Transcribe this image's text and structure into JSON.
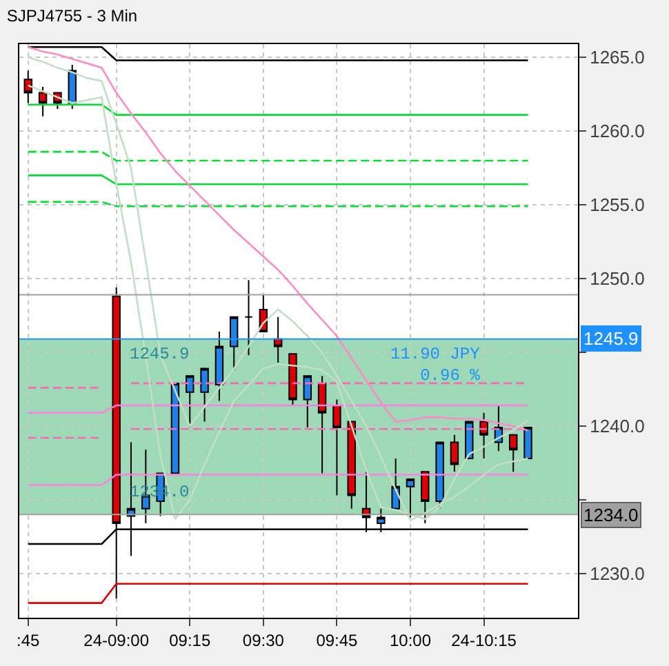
{
  "chart_data": {
    "type": "candlestick",
    "title": "SJPJ4755 - 3 Min",
    "categories": [
      ":45",
      null,
      null,
      null,
      null,
      null,
      "24-09:00",
      null,
      null,
      null,
      null,
      "09:15",
      null,
      null,
      null,
      null,
      "09:30",
      null,
      null,
      null,
      null,
      "09:45",
      null,
      null,
      null,
      null,
      "10:00",
      null,
      null,
      null,
      null,
      "24-10:15",
      null,
      null,
      null
    ],
    "ohlc": [
      [
        1263.5,
        1264.1,
        1261.9,
        1262.6
      ],
      [
        1262.6,
        1263.0,
        1261.0,
        1261.9
      ],
      [
        1262.6,
        1262.6,
        1261.5,
        1261.9
      ],
      [
        1261.9,
        1264.5,
        1261.5,
        1264.1
      ],
      null,
      null,
      [
        1248.8,
        1249.4,
        1228.3,
        1233.4
      ],
      [
        1233.9,
        1238.9,
        1231.2,
        1234.4
      ],
      [
        1234.4,
        1238.4,
        1233.4,
        1235.3
      ],
      [
        1234.9,
        1236.8,
        1233.9,
        1236.8
      ],
      [
        1236.8,
        1242.9,
        1236.8,
        1242.9
      ],
      [
        1242.3,
        1243.4,
        1239.9,
        1243.4
      ],
      [
        1242.3,
        1243.9,
        1240.3,
        1243.9
      ],
      [
        1242.8,
        1246.4,
        1241.7,
        1245.4
      ],
      [
        1245.4,
        1247.4,
        1243.8,
        1247.4
      ],
      [
        1247.4,
        1249.9,
        1244.8,
        1247.4
      ],
      [
        1247.9,
        1248.9,
        1246.4,
        1246.4
      ],
      [
        1245.9,
        1247.4,
        1244.3,
        1245.4
      ],
      [
        1244.9,
        1244.9,
        1241.4,
        1241.8
      ],
      [
        1241.8,
        1243.4,
        1239.9,
        1243.4
      ],
      [
        1242.9,
        1243.4,
        1236.8,
        1240.9
      ],
      [
        1241.4,
        1241.8,
        1235.3,
        1239.9
      ],
      [
        1240.3,
        1240.3,
        1234.4,
        1235.3
      ],
      [
        1234.4,
        1236.9,
        1232.8,
        1233.8
      ],
      [
        1233.4,
        1234.4,
        1232.8,
        1233.8
      ],
      [
        1234.4,
        1237.8,
        1234.4,
        1235.9
      ],
      [
        1235.9,
        1236.4,
        1233.8,
        1236.4
      ],
      [
        1236.9,
        1236.9,
        1233.4,
        1234.9
      ],
      [
        1234.9,
        1238.9,
        1234.4,
        1238.9
      ],
      [
        1238.9,
        1239.4,
        1236.9,
        1237.4
      ],
      [
        1237.8,
        1240.3,
        1237.8,
        1240.3
      ],
      [
        1240.3,
        1240.9,
        1237.8,
        1239.4
      ],
      [
        1238.9,
        1241.4,
        1238.3,
        1239.9
      ],
      [
        1239.4,
        1239.4,
        1236.9,
        1238.4
      ],
      [
        1237.8,
        1239.9,
        1237.8,
        1239.9
      ]
    ],
    "colors": [
      "#e00000",
      "#e00000",
      "#e00000",
      "#1e82e6",
      null,
      null,
      "#e00000",
      "#1e82e6",
      "#1e82e6",
      "#1e82e6",
      "#1e82e6",
      "#1e82e6",
      "#1e82e6",
      "#1e82e6",
      "#1e82e6",
      "#000000",
      "#e00000",
      "#e00000",
      "#e00000",
      "#1e82e6",
      "#e00000",
      "#e00000",
      "#e00000",
      "#e00000",
      "#1e82e6",
      "#1e82e6",
      "#1e82e6",
      "#e00000",
      "#1e82e6",
      "#e00000",
      "#1e82e6",
      "#e00000",
      "#1e82e6",
      "#e00000",
      "#1e82e6"
    ],
    "series": [
      {
        "type": "line",
        "color": "#000000",
        "line_style": "solid",
        "values": [
          1265.7,
          1265.7,
          1265.7,
          1265.7,
          1265.7,
          1265.7,
          1264.8,
          1264.8,
          1264.8,
          1264.8,
          1264.8,
          1264.8,
          1264.8,
          1264.8,
          1264.8,
          1264.8,
          1264.8,
          1264.8,
          1264.8,
          1264.8,
          1264.8,
          1264.8,
          1264.8,
          1264.8,
          1264.8,
          1264.8,
          1264.8,
          1264.8,
          1264.8,
          1264.8,
          1264.8,
          1264.8,
          1264.8,
          1264.8,
          1264.8
        ]
      },
      {
        "type": "line",
        "color": "#00dd33",
        "line_style": "solid",
        "values": [
          1261.8,
          1261.8,
          1261.8,
          1261.8,
          1261.8,
          1261.8,
          1261.1,
          1261.1,
          1261.1,
          1261.1,
          1261.1,
          1261.1,
          1261.1,
          1261.1,
          1261.1,
          1261.1,
          1261.1,
          1261.1,
          1261.1,
          1261.1,
          1261.1,
          1261.1,
          1261.1,
          1261.1,
          1261.1,
          1261.1,
          1261.1,
          1261.1,
          1261.1,
          1261.1,
          1261.1,
          1261.1,
          1261.1,
          1261.1,
          1261.1
        ]
      },
      {
        "type": "line",
        "color": "#00dd33",
        "line_style": "dashed",
        "values": [
          1258.6,
          1258.6,
          1258.6,
          1258.6,
          1258.6,
          1258.6,
          1258.0,
          1258.0,
          1258.0,
          1258.0,
          1258.0,
          1258.0,
          1258.0,
          1258.0,
          1258.0,
          1258.0,
          1258.0,
          1258.0,
          1258.0,
          1258.0,
          1258.0,
          1258.0,
          1258.0,
          1258.0,
          1258.0,
          1258.0,
          1258.0,
          1258.0,
          1258.0,
          1258.0,
          1258.0,
          1258.0,
          1258.0,
          1258.0,
          1258.0
        ]
      },
      {
        "type": "line",
        "color": "#00dd33",
        "line_style": "solid",
        "values": [
          1257.0,
          1257.0,
          1257.0,
          1257.0,
          1257.0,
          1257.0,
          1256.4,
          1256.4,
          1256.4,
          1256.4,
          1256.4,
          1256.4,
          1256.4,
          1256.4,
          1256.4,
          1256.4,
          1256.4,
          1256.4,
          1256.4,
          1256.4,
          1256.4,
          1256.4,
          1256.4,
          1256.4,
          1256.4,
          1256.4,
          1256.4,
          1256.4,
          1256.4,
          1256.4,
          1256.4,
          1256.4,
          1256.4,
          1256.4,
          1256.4
        ]
      },
      {
        "type": "line",
        "color": "#00dd33",
        "line_style": "dashed",
        "values": [
          1255.2,
          1255.2,
          1255.2,
          1255.2,
          1255.2,
          1255.2,
          1254.9,
          1254.9,
          1254.9,
          1254.9,
          1254.9,
          1254.9,
          1254.9,
          1254.9,
          1254.9,
          1254.9,
          1254.9,
          1254.9,
          1254.9,
          1254.9,
          1254.9,
          1254.9,
          1254.9,
          1254.9,
          1254.9,
          1254.9,
          1254.9,
          1254.9,
          1254.9,
          1254.9,
          1254.9,
          1254.9,
          1254.9,
          1254.9,
          1254.9
        ]
      },
      {
        "type": "line",
        "color": "#ff69b4",
        "line_style": "dashed",
        "values": [
          1242.6,
          1242.6,
          1242.6,
          1242.6,
          1242.6,
          1242.6,
          null,
          1242.9,
          1242.9,
          1242.9,
          1242.9,
          1242.9,
          1242.9,
          1242.9,
          1242.9,
          1242.9,
          1242.9,
          1242.9,
          1242.9,
          1242.9,
          1242.9,
          1242.9,
          1242.9,
          1242.9,
          1242.9,
          1242.9,
          1242.9,
          1242.9,
          1242.9,
          1242.9,
          1242.9,
          1242.9,
          1242.9,
          1242.9,
          1242.9
        ]
      },
      {
        "type": "line",
        "color": "#ff80e0",
        "line_style": "solid",
        "values": [
          1240.9,
          1240.9,
          1240.9,
          1240.9,
          1240.9,
          1240.9,
          1241.4,
          1241.4,
          1241.4,
          1241.4,
          1241.4,
          1241.4,
          1241.4,
          1241.4,
          1241.4,
          1241.4,
          1241.4,
          1241.4,
          1241.4,
          1241.4,
          1241.4,
          1241.4,
          1241.4,
          1241.4,
          1241.4,
          1241.4,
          1241.4,
          1241.4,
          1241.4,
          1241.4,
          1241.4,
          1241.4,
          1241.4,
          1241.4,
          1241.4
        ]
      },
      {
        "type": "line",
        "color": "#ff69b4",
        "line_style": "dashed",
        "values": [
          1239.2,
          1239.2,
          1239.2,
          1239.2,
          1239.2,
          1239.2,
          null,
          1239.8,
          1239.8,
          1239.8,
          1239.8,
          1239.8,
          1239.8,
          1239.8,
          1239.8,
          1239.8,
          1239.8,
          1239.8,
          1239.8,
          1239.8,
          1239.8,
          1239.8,
          1239.8,
          1239.8,
          1239.8,
          1239.8,
          1239.8,
          1239.8,
          1239.8,
          1239.8,
          1239.8,
          1239.8,
          1239.8,
          1239.8,
          1239.8
        ]
      },
      {
        "type": "line",
        "color": "#ff80e0",
        "line_style": "solid",
        "values": [
          1236.0,
          1236.0,
          1236.0,
          1236.0,
          1236.0,
          1236.0,
          1236.7,
          1236.7,
          1236.7,
          1236.7,
          1236.7,
          1236.7,
          1236.7,
          1236.7,
          1236.7,
          1236.7,
          1236.7,
          1236.7,
          1236.7,
          1236.7,
          1236.7,
          1236.7,
          1236.7,
          1236.7,
          1236.7,
          1236.7,
          1236.7,
          1236.7,
          1236.7,
          1236.7,
          1236.7,
          1236.7,
          1236.7,
          1236.7,
          1236.7
        ]
      },
      {
        "type": "line",
        "color": "#000000",
        "line_style": "solid",
        "values": [
          1232.0,
          1232.0,
          1232.0,
          1232.0,
          1232.0,
          1232.0,
          1233.0,
          1233.0,
          1233.0,
          1233.0,
          1233.0,
          1233.0,
          1233.0,
          1233.0,
          1233.0,
          1233.0,
          1233.0,
          1233.0,
          1233.0,
          1233.0,
          1233.0,
          1233.0,
          1233.0,
          1233.0,
          1233.0,
          1233.0,
          1233.0,
          1233.0,
          1233.0,
          1233.0,
          1233.0,
          1233.0,
          1233.0,
          1233.0,
          1233.0
        ]
      },
      {
        "type": "line",
        "color": "#e00000",
        "line_style": "solid",
        "values": [
          1228.0,
          1228.0,
          1228.0,
          1228.0,
          1228.0,
          1228.0,
          1229.3,
          1229.3,
          1229.3,
          1229.3,
          1229.3,
          1229.3,
          1229.3,
          1229.3,
          1229.3,
          1229.3,
          1229.3,
          1229.3,
          1229.3,
          1229.3,
          1229.3,
          1229.3,
          1229.3,
          1229.3,
          1229.3,
          1229.3,
          1229.3,
          1229.3,
          1229.3,
          1229.3,
          1229.3,
          1229.3,
          1229.3,
          1229.3,
          1229.3
        ]
      },
      {
        "type": "line",
        "color": "#ff8cc6",
        "line_style": "solid",
        "values": [
          1265.7,
          1265.4,
          1265.2,
          1264.9,
          1264.6,
          1264.3,
          1262.6,
          1261.2,
          1259.9,
          1258.5,
          1257.3,
          1256.3,
          1255.3,
          1254.3,
          1253.3,
          1252.4,
          1251.5,
          1250.6,
          1249.5,
          1248.3,
          1247.2,
          1246.1,
          1244.6,
          1243.1,
          1241.6,
          1240.3,
          1240.4,
          1240.6,
          1240.6,
          1240.5,
          1240.5,
          1240.4,
          1240.2,
          1240.0,
          1239.7
        ]
      },
      {
        "type": "line",
        "color": "#c3dfc3",
        "line_style": "solid",
        "values": [
          1265.0,
          1264.7,
          1264.3,
          1264.0,
          1263.6,
          1263.4,
          1260.5,
          1257.5,
          1251.2,
          1244.8,
          1242.4,
          1240.0,
          1241.3,
          1242.6,
          1243.9,
          1245.4,
          1247.0,
          1247.9,
          1247.1,
          1246.1,
          1245.0,
          1243.4,
          1241.7,
          1240.0,
          1237.9,
          1235.7,
          1233.6,
          1234.1,
          1234.7,
          1235.2,
          1235.9,
          1236.7,
          1237.4,
          1237.6,
          1237.8
        ]
      },
      {
        "type": "line",
        "color": "#c3dfc3",
        "line_style": "solid",
        "values": [
          1263.1,
          1262.7,
          1262.3,
          1261.9,
          1262.1,
          1262.3,
          1256.4,
          1251.1,
          1244.7,
          1238.0,
          1233.7,
          1235.0,
          1237.4,
          1239.6,
          1241.7,
          1242.8,
          1243.9,
          1244.2,
          1244.1,
          1244.0,
          1243.8,
          1243.0,
          1240.0,
          1237.0,
          1234.5,
          1234.3,
          1234.0,
          1233.7,
          1234.5,
          1236.4,
          1238.1,
          1238.6,
          1239.2,
          1239.7,
          1240.4
        ]
      }
    ],
    "ref_lines": [
      {
        "axis": "y",
        "value": 1248.9,
        "color": "#a0a0a0"
      },
      {
        "axis": "y",
        "value": 1245.9,
        "label": "1245.9",
        "color": "#1e90ff"
      },
      {
        "axis": "y",
        "value": 1234.0,
        "label": "1234.0",
        "color": "#a0a0a0"
      }
    ],
    "bands": [
      {
        "axis": "y",
        "from": 1234.0,
        "to": 1245.9,
        "color": "#5cbf85"
      }
    ],
    "annotations": [
      {
        "text": "1245.9",
        "x": "24-09:00",
        "y": 1245.9
      },
      {
        "text": "1234.0",
        "x": "24-09:00",
        "y": 1234.0
      },
      {
        "text": "11.90 JPY\n0.96 %",
        "x": "24-10:15",
        "y": 1245.9
      }
    ],
    "ylim": [
      1227.0,
      1265.9
    ],
    "yticks": [
      {
        "value": 1230,
        "label": "1230.0"
      },
      {
        "value": 1235,
        "label": null
      },
      {
        "value": 1240,
        "label": "1240.0"
      },
      {
        "value": 1245,
        "label": null
      },
      {
        "value": 1250,
        "label": "1250.0"
      },
      {
        "value": 1255,
        "label": "1255.0"
      },
      {
        "value": 1260,
        "label": "1260.0"
      },
      {
        "value": 1265,
        "label": "1265.0"
      }
    ],
    "grid": true
  }
}
